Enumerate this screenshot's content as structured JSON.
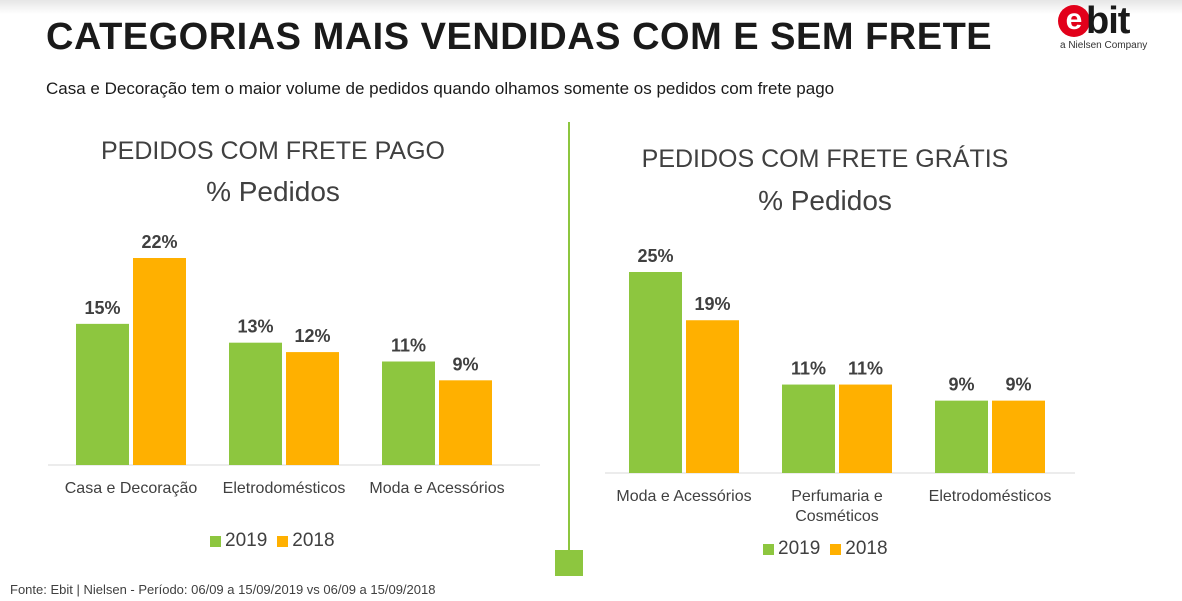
{
  "header": {
    "title": "CATEGORIAS MAIS VENDIDAS COM E SEM FRETE",
    "subtitle": "Casa e Decoração tem o maior volume de pedidos quando olhamos somente os pedidos com frete pago"
  },
  "logo": {
    "letter": "e",
    "word": "bit",
    "tagline": "a Nielsen Company",
    "accent": "#e2001a"
  },
  "colors": {
    "series_2019": "#8dc63f",
    "series_2018": "#ffb000",
    "divider": "#8dc63f"
  },
  "chart_data": [
    {
      "type": "bar",
      "title": "PEDIDOS COM FRETE PAGO",
      "subtitle": "% Pedidos",
      "categories": [
        "Casa e Decoração",
        "Eletrodomésticos",
        "Moda e Acessórios"
      ],
      "series": [
        {
          "name": "2019",
          "values": [
            15,
            13,
            11
          ],
          "labels": [
            "15%",
            "13%",
            "11%"
          ]
        },
        {
          "name": "2018",
          "values": [
            22,
            12,
            9
          ],
          "labels": [
            "22%",
            "12%",
            "9%"
          ]
        }
      ],
      "ylim": [
        0,
        22
      ],
      "grid": false,
      "legend": "bottom"
    },
    {
      "type": "bar",
      "title": "PEDIDOS COM FRETE GRÁTIS",
      "subtitle": "% Pedidos",
      "categories": [
        "Moda e Acessórios",
        "Perfumaria e Cosméticos",
        "Eletrodomésticos"
      ],
      "series": [
        {
          "name": "2019",
          "values": [
            25,
            11,
            9
          ],
          "labels": [
            "25%",
            "11%",
            "9%"
          ]
        },
        {
          "name": "2018",
          "values": [
            19,
            11,
            9
          ],
          "labels": [
            "19%",
            "11%",
            "9%"
          ]
        }
      ],
      "ylim": [
        0,
        25
      ],
      "grid": false,
      "legend": "bottom"
    }
  ],
  "footer": {
    "source": "Fonte: Ebit | Nielsen - Período: 06/09 a 15/09/2019 vs 06/09 a 15/09/2018"
  }
}
